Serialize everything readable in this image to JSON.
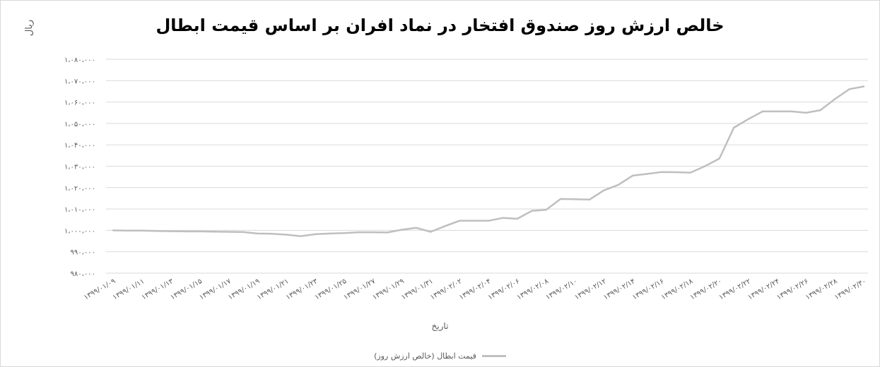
{
  "chart_data": {
    "type": "line",
    "title": "خالص ارزش روز صندوق افتخار در نماد افران بر اساس قیمت ابطال",
    "ylabel": "ریال",
    "xlabel": "تاریخ",
    "ylim": [
      980000,
      1080000
    ],
    "y_ticks": [
      980000,
      990000,
      1000000,
      1010000,
      1020000,
      1030000,
      1040000,
      1050000,
      1060000,
      1070000,
      1080000
    ],
    "y_tick_labels": [
      "۹۸۰،۰۰۰",
      "۹۹۰،۰۰۰",
      "۱،۰۰۰،۰۰۰",
      "۱،۰۱۰،۰۰۰",
      "۱،۰۲۰،۰۰۰",
      "۱،۰۳۰،۰۰۰",
      "۱،۰۴۰،۰۰۰",
      "۱،۰۵۰،۰۰۰",
      "۱،۰۶۰،۰۰۰",
      "۱،۰۷۰،۰۰۰",
      "۱،۰۸۰،۰۰۰"
    ],
    "x_tick_labels": [
      "۱۳۹۹/۰۱/۰۹",
      "۱۳۹۹/۰۱/۱۱",
      "۱۳۹۹/۰۱/۱۳",
      "۱۳۹۹/۰۱/۱۵",
      "۱۳۹۹/۰۱/۱۷",
      "۱۳۹۹/۰۱/۱۹",
      "۱۳۹۹/۰۱/۲۱",
      "۱۳۹۹/۰۱/۲۳",
      "۱۳۹۹/۰۱/۲۵",
      "۱۳۹۹/۰۱/۲۷",
      "۱۳۹۹/۰۱/۲۹",
      "۱۳۹۹/۰۱/۳۱",
      "۱۳۹۹/۰۲/۰۲",
      "۱۳۹۹/۰۲/۰۴",
      "۱۳۹۹/۰۲/۰۶",
      "۱۳۹۹/۰۲/۰۸",
      "۱۳۹۹/۰۲/۱۰",
      "۱۳۹۹/۰۲/۱۲",
      "۱۳۹۹/۰۲/۱۴",
      "۱۳۹۹/۰۲/۱۶",
      "۱۳۹۹/۰۲/۱۸",
      "۱۳۹۹/۰۲/۲۰",
      "۱۳۹۹/۰۲/۲۲",
      "۱۳۹۹/۰۲/۲۴",
      "۱۳۹۹/۰۲/۲۶",
      "۱۳۹۹/۰۲/۲۸",
      "۱۳۹۹/۰۲/۳۰"
    ],
    "series": [
      {
        "name": "قیمت ابطال (خالص ارزش روز)",
        "color": "#bfbfbf",
        "values": [
          1000000,
          999900,
          999900,
          999700,
          999600,
          999500,
          999500,
          999400,
          999300,
          999200,
          998500,
          998400,
          998000,
          997300,
          998200,
          998500,
          998700,
          999100,
          999100,
          999000,
          1000300,
          1001200,
          999300,
          1002000,
          1004500,
          1004500,
          1004500,
          1005800,
          1005400,
          1009100,
          1009600,
          1014700,
          1014600,
          1014400,
          1018700,
          1021300,
          1025600,
          1026400,
          1027300,
          1027200,
          1027000,
          1030000,
          1033600,
          1048000,
          1052000,
          1055600,
          1055600,
          1055600,
          1055000,
          1056200,
          1061400,
          1066000,
          1067300
        ]
      }
    ],
    "grid": true,
    "legend_position": "bottom"
  }
}
